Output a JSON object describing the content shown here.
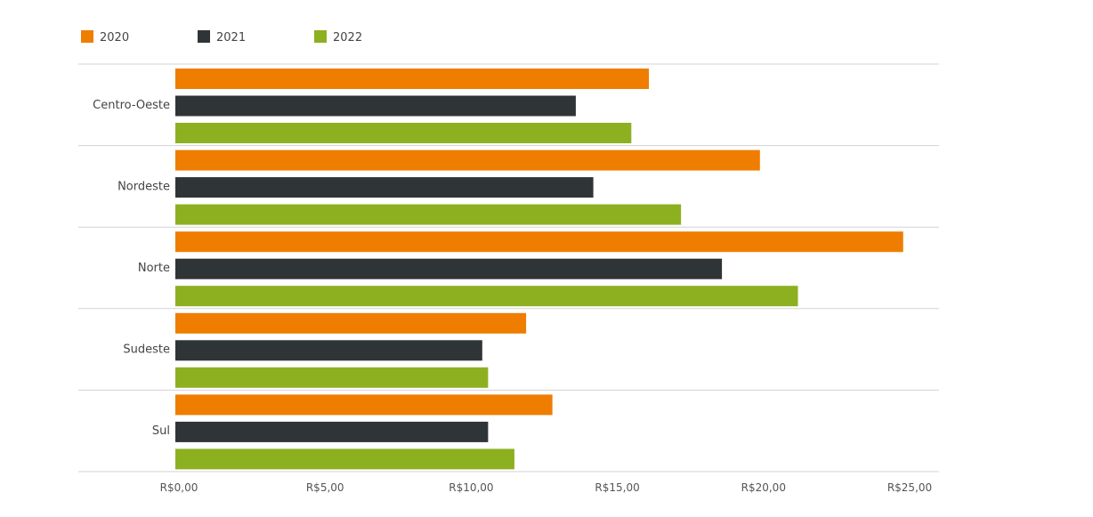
{
  "chart_data": {
    "type": "bar",
    "orientation": "horizontal",
    "categories": [
      "Centro-Oeste",
      "Nordeste",
      "Norte",
      "Sudeste",
      "Sul"
    ],
    "series": [
      {
        "name": "2020",
        "color": "#ef7d00",
        "values": [
          16.2,
          20.0,
          24.9,
          12.0,
          12.9
        ]
      },
      {
        "name": "2021",
        "color": "#2f3437",
        "values": [
          13.7,
          14.3,
          18.7,
          10.5,
          10.7
        ]
      },
      {
        "name": "2022",
        "color": "#8db021",
        "values": [
          15.6,
          17.3,
          21.3,
          10.7,
          11.6
        ]
      }
    ],
    "xlim": [
      0,
      26
    ],
    "xticks": [
      0,
      5,
      10,
      15,
      20,
      25
    ],
    "xtick_labels": [
      "R$0,00",
      "R$5,00",
      "R$10,00",
      "R$15,00",
      "R$20,00",
      "R$25,00"
    ],
    "legend_position": "top-left",
    "grid": "horizontal separators between categories",
    "title": "",
    "xlabel": "",
    "ylabel": ""
  }
}
